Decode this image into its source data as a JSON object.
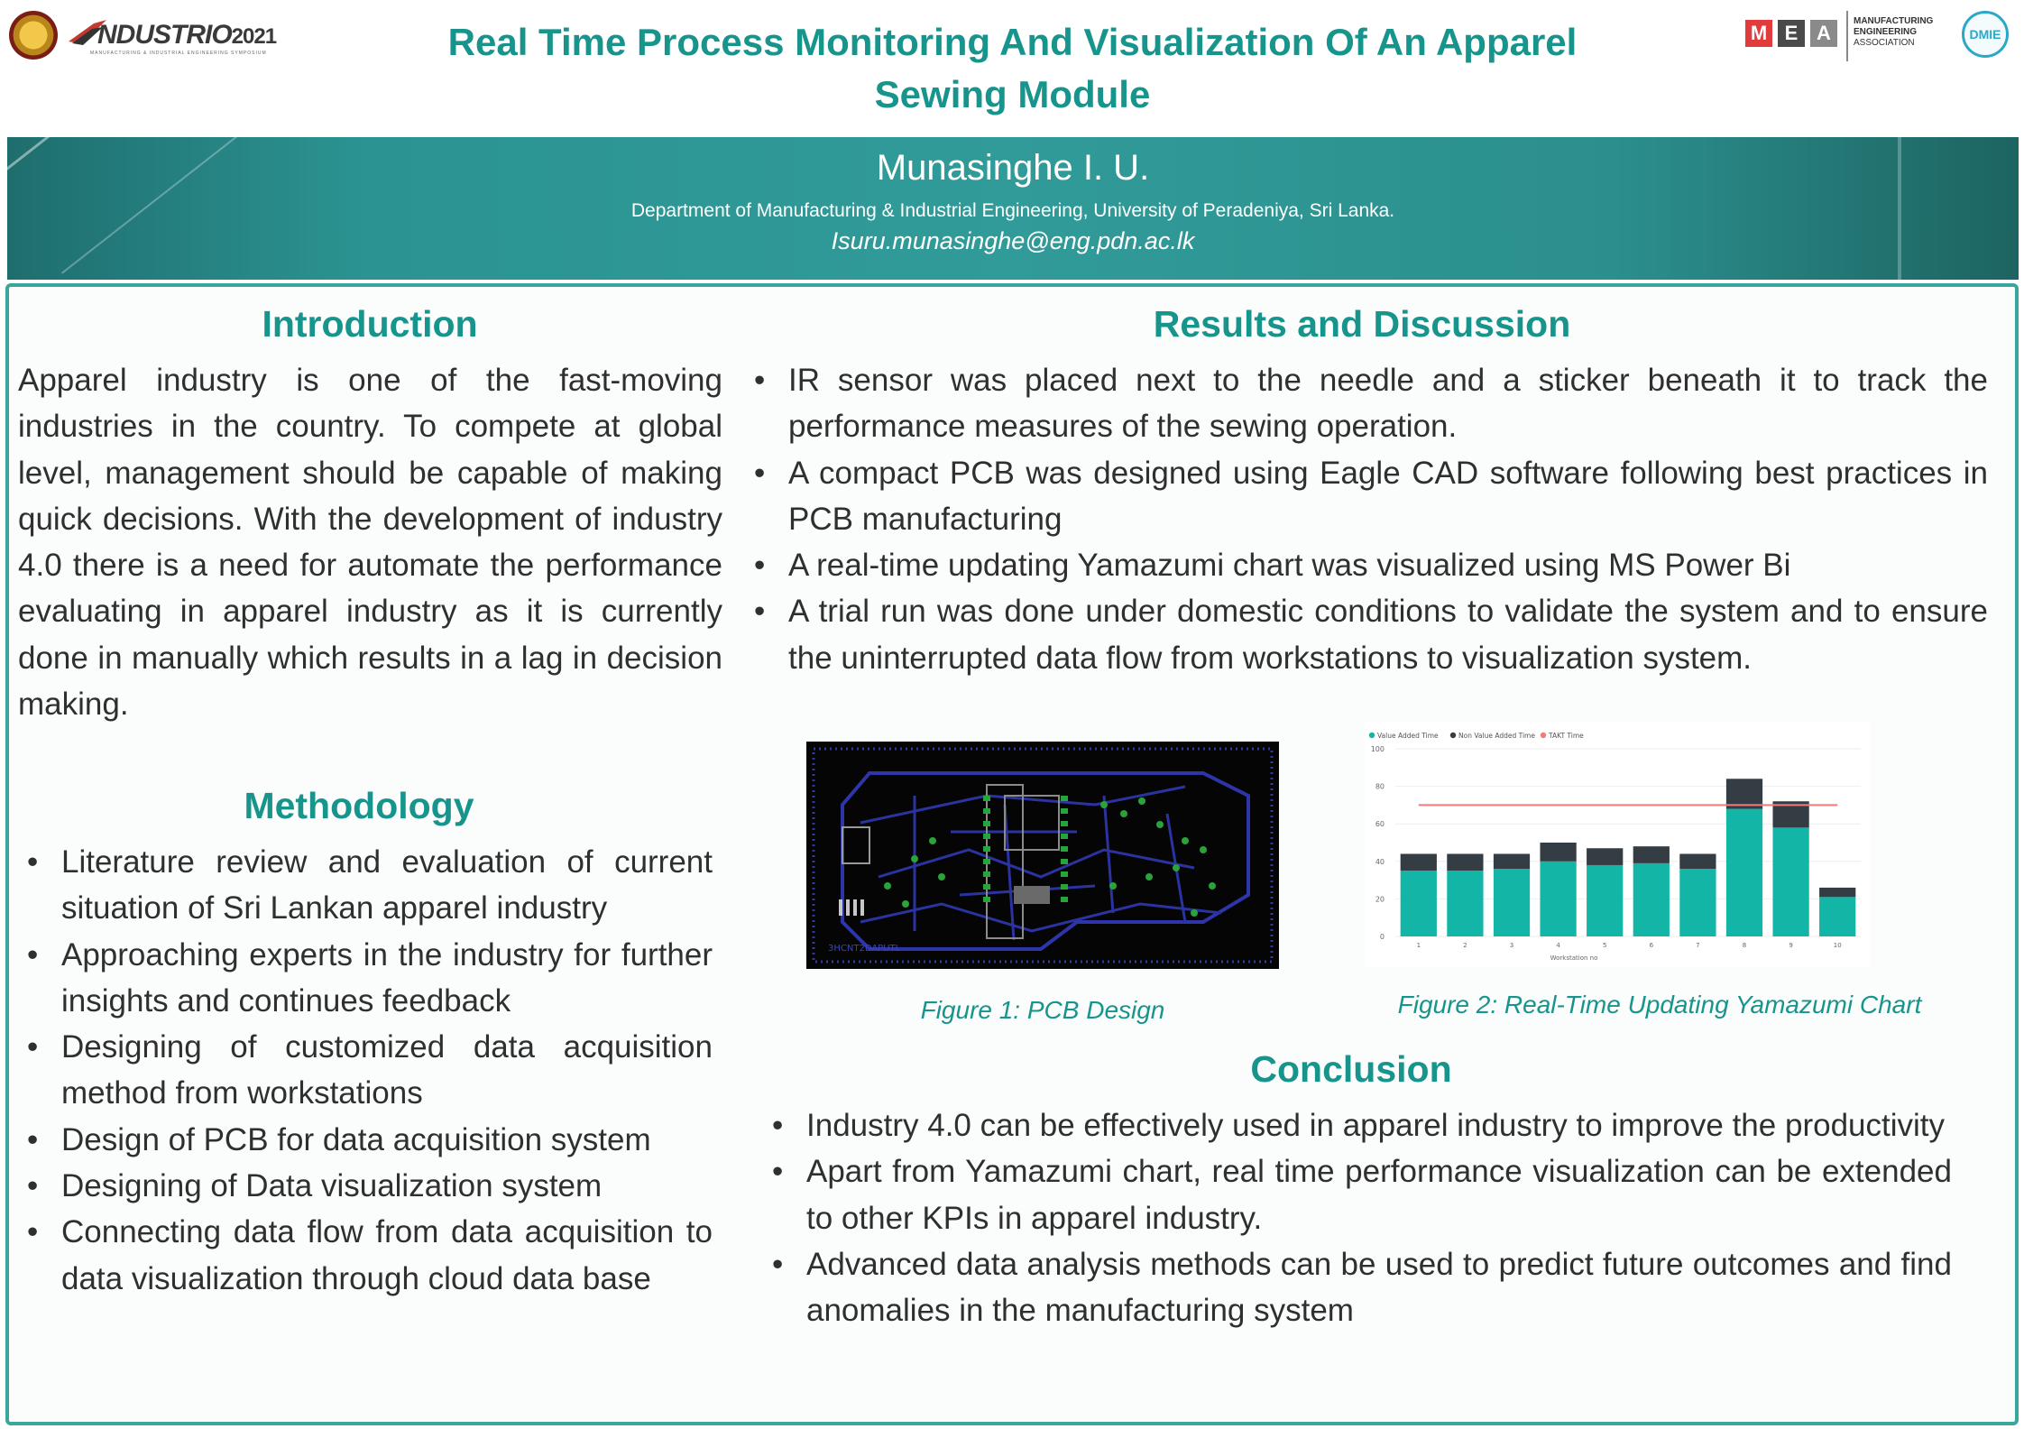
{
  "header": {
    "title_line1": "Real Time Process Monitoring And Visualization Of An Apparel",
    "title_line2": "Sewing Module",
    "left_logo": {
      "name": "NDUSTRIO",
      "year": "2021",
      "tagline": "MANUFACTURING & INDUSTRIAL ENGINEERING SYMPOSIUM"
    },
    "right_logo": {
      "letters": [
        "M",
        "E",
        "A"
      ],
      "letter_colors": [
        "#e23b3b",
        "#4a4a4a",
        "#8a8a8a"
      ],
      "lines": [
        "MANUFACTURING",
        "ENGINEERING",
        "ASSOCIATION"
      ],
      "badge": "DMIE"
    }
  },
  "author": {
    "name": "Munasinghe I. U.",
    "department": "Department of Manufacturing & Industrial Engineering, University of Peradeniya, Sri Lanka.",
    "email": "Isuru.munasinghe@eng.pdn.ac.lk"
  },
  "introduction": {
    "heading": "Introduction",
    "lines": [
      "Apparel industry is one of the fast-moving",
      "industries in the country. To compete at",
      "global level, management should be capable",
      "of making quick decisions. With the",
      "development of industry 4.0 there is a need",
      "for automate the performance evaluating in",
      "apparel industry as it is currently done in",
      "manually which results in a lag in decision",
      "making."
    ]
  },
  "methodology": {
    "heading": "Methodology",
    "items": [
      [
        "Literature review and evaluation of",
        "current situation of Sri Lankan apparel",
        "industry"
      ],
      [
        "Approaching experts in the industry for",
        "further insights and continues feedback"
      ],
      [
        "Designing of customized data acquisition",
        "method from workstations"
      ],
      [
        "Design of PCB for data acquisition system"
      ],
      [
        "Designing of Data visualization system"
      ],
      [
        "Connecting data flow from data",
        "acquisition to data visualization through",
        "cloud data base"
      ]
    ]
  },
  "results": {
    "heading": "Results and Discussion",
    "items": [
      [
        "IR sensor was placed next to the needle and a sticker beneath it to track the",
        "performance measures of the sewing operation."
      ],
      [
        "A compact PCB was designed using Eagle CAD software following best",
        "practices in PCB manufacturing"
      ],
      [
        "A real-time updating Yamazumi chart was visualized using MS Power Bi"
      ],
      [
        "A trial run was done under domestic conditions to validate the system and",
        "to ensure the uninterrupted data flow from workstations to visualization",
        "system."
      ]
    ]
  },
  "figures": {
    "pcb_caption": "Figure 1: PCB Design",
    "chart_caption": "Figure 2: Real-Time Updating Yamazumi Chart",
    "pcb_label": "3HCNT2DAPUTL"
  },
  "conclusion": {
    "heading": "Conclusion",
    "items": [
      [
        "Industry 4.0 can be effectively used in apparel industry to improve the",
        "productivity"
      ],
      [
        "Apart from Yamazumi chart, real time performance visualization can be",
        "extended to other KPIs in apparel industry."
      ],
      [
        "Advanced data analysis methods can be used to predict future outcomes",
        "and find anomalies in the manufacturing system"
      ]
    ]
  },
  "chart_data": {
    "type": "bar",
    "stacked": true,
    "categories": [
      "1",
      "2",
      "3",
      "4",
      "5",
      "6",
      "7",
      "8",
      "9",
      "10"
    ],
    "series": [
      {
        "name": "Value Added Time",
        "color": "#12b5a6",
        "values": [
          35,
          35,
          36,
          40,
          38,
          39,
          36,
          68,
          58,
          21
        ]
      },
      {
        "name": "Non Value Added Time",
        "color": "#333d43",
        "values": [
          9,
          9,
          8,
          10,
          9,
          9,
          8,
          16,
          14,
          5
        ]
      }
    ],
    "reference_line": {
      "name": "TAKT Time",
      "color": "#f47b7b",
      "value": 70
    },
    "xlabel": "Workstation no",
    "ylim": [
      0,
      100
    ],
    "yticks": [
      0,
      20,
      40,
      60,
      80,
      100
    ],
    "legend_position": "top-left",
    "grid": true
  }
}
